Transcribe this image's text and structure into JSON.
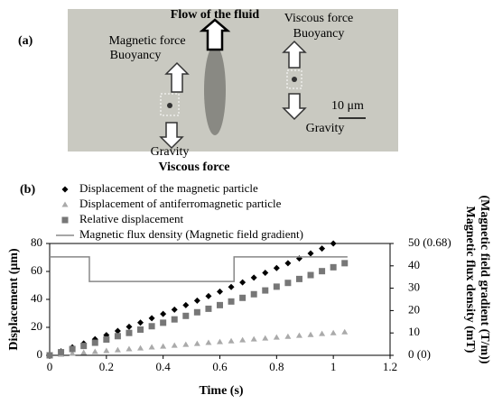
{
  "panel_a": {
    "label": "(a)",
    "flow": "Flow of the fluid",
    "left_top_1": "Magnetic force",
    "left_top_2": "Buoyancy",
    "left_bottom_1": "Gravity",
    "left_bottom_2": "Viscous force",
    "right_top_1": "Viscous force",
    "right_top_2": "Buoyancy",
    "right_bottom": "Gravity",
    "scale": "10 μm"
  },
  "chart_data": {
    "type": "scatter",
    "panel_label": "(b)",
    "x_label": "Time (s)",
    "y_label": "Displacement (μm)",
    "y2_label": "Magnetic flux density (mT)",
    "y2_label_2": "(Magnetic field gradient (T/m))",
    "xlim": [
      0,
      1.2
    ],
    "xticks": [
      0,
      0.2,
      0.4,
      0.6,
      0.8,
      1,
      1.2
    ],
    "ylim": [
      0,
      80
    ],
    "yticks": [
      0,
      20,
      40,
      60,
      80
    ],
    "y2lim": [
      0,
      50
    ],
    "y2ticks": [
      {
        "value": 0,
        "label": "0 (0)"
      },
      10,
      20,
      30,
      40,
      {
        "value": 50,
        "label": "50 (0.68)"
      }
    ],
    "series": [
      {
        "name": "Displacement of the magnetic particle",
        "color": "#000000",
        "marker": "diamond",
        "x": [
          0,
          0.04,
          0.08,
          0.12,
          0.16,
          0.2,
          0.24,
          0.28,
          0.32,
          0.36,
          0.4,
          0.44,
          0.48,
          0.52,
          0.56,
          0.6,
          0.64,
          0.68,
          0.72,
          0.76,
          0.8,
          0.84,
          0.88,
          0.92,
          0.96,
          1.0
        ],
        "values": [
          0,
          2.8,
          5.7,
          8.5,
          11.5,
          14.4,
          17.4,
          20.4,
          23.4,
          26.5,
          29.6,
          32.7,
          35.9,
          39.1,
          42.3,
          45.6,
          48.9,
          52.2,
          55.6,
          59,
          62.4,
          65.9,
          69.3,
          72.9,
          76.4,
          80
        ]
      },
      {
        "name": "Displacement of antiferromagnetic particle",
        "color": "#aaaaaa",
        "marker": "triangle",
        "x": [
          0,
          0.04,
          0.08,
          0.12,
          0.16,
          0.2,
          0.24,
          0.28,
          0.32,
          0.36,
          0.4,
          0.44,
          0.48,
          0.52,
          0.56,
          0.6,
          0.64,
          0.68,
          0.72,
          0.76,
          0.8,
          0.84,
          0.88,
          0.92,
          0.96,
          1.0,
          1.04
        ],
        "values": [
          0,
          0.6,
          1.3,
          1.9,
          2.6,
          3.2,
          3.8,
          4.5,
          5.1,
          5.8,
          6.4,
          7,
          7.7,
          8.3,
          9,
          9.6,
          10.2,
          10.9,
          11.5,
          12.2,
          12.8,
          13.4,
          14.1,
          14.7,
          15.4,
          16,
          16.6
        ]
      },
      {
        "name": "Relative displacement",
        "color": "#777777",
        "marker": "square",
        "x": [
          0,
          0.04,
          0.08,
          0.12,
          0.16,
          0.2,
          0.24,
          0.28,
          0.32,
          0.36,
          0.4,
          0.44,
          0.48,
          0.52,
          0.56,
          0.6,
          0.64,
          0.68,
          0.72,
          0.76,
          0.8,
          0.84,
          0.88,
          0.92,
          0.96,
          1.0,
          1.04
        ],
        "values": [
          0,
          2.2,
          4.5,
          6.7,
          9,
          11.3,
          13.7,
          16,
          18.4,
          20.8,
          23.3,
          25.7,
          28.2,
          30.8,
          33.3,
          35.9,
          38.5,
          41.1,
          43.7,
          46.4,
          49.1,
          51.8,
          54.6,
          57.4,
          60.2,
          63,
          65.9
        ]
      },
      {
        "name": "Magnetic flux density (Magnetic field gradient)",
        "color": "#888888",
        "marker": "line",
        "axis": "y2",
        "x": [
          0,
          0.14,
          0.14,
          0.65,
          0.65,
          1.05
        ],
        "values": [
          44,
          44,
          33,
          33,
          44,
          44
        ]
      }
    ]
  }
}
